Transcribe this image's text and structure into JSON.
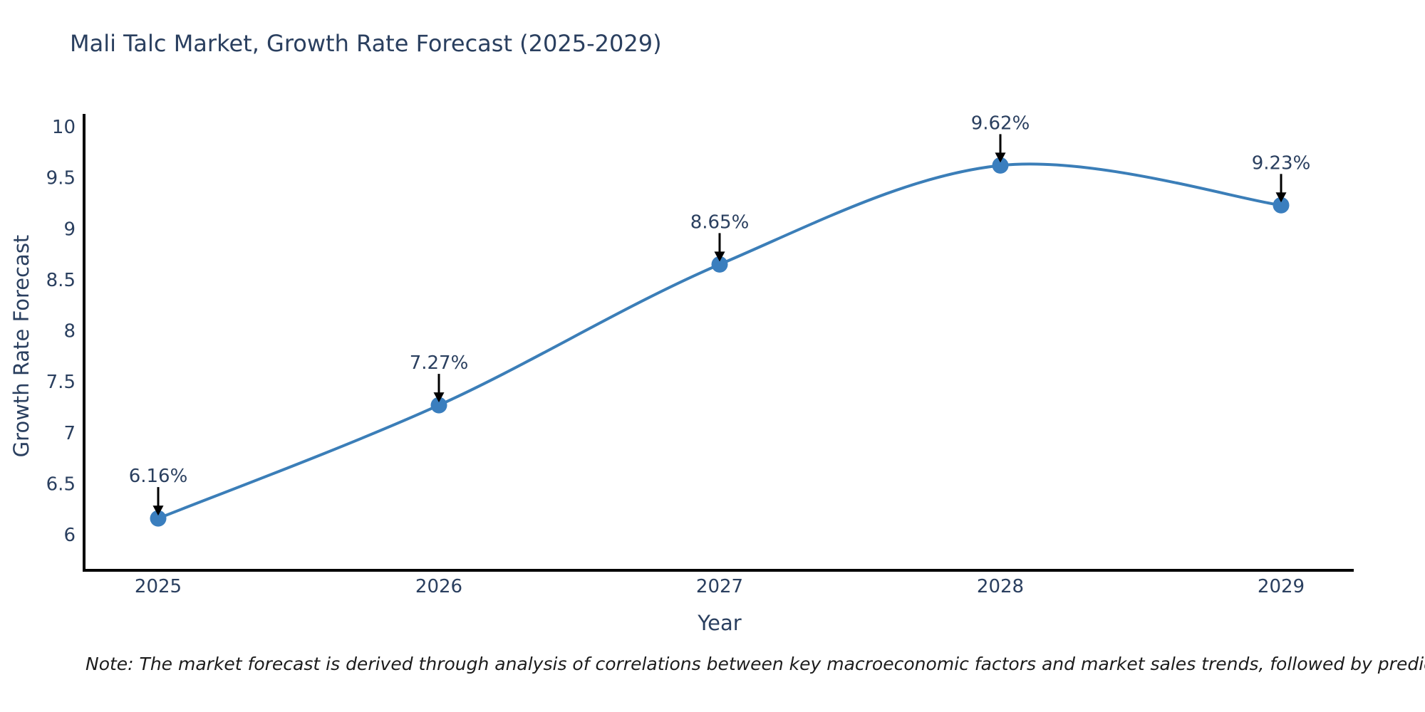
{
  "title": "Mali Talc Market, Growth Rate Forecast (2025-2029)",
  "note": "Note: The market forecast is derived through analysis of correlations between key macroeconomic factors and market sales trends, followed by predictive modeling to project future sales",
  "chart_data": {
    "type": "line",
    "title": "Mali Talc Market, Growth Rate Forecast (2025-2029)",
    "xlabel": "Year",
    "ylabel": "Growth Rate Forecast",
    "categories": [
      "2025",
      "2026",
      "2027",
      "2028",
      "2029"
    ],
    "series": [
      {
        "name": "Growth Rate Forecast",
        "values": [
          6.16,
          7.27,
          8.65,
          9.62,
          9.23
        ],
        "data_labels": [
          "6.16%",
          "7.27%",
          "8.65%",
          "9.62%",
          "9.23%"
        ]
      }
    ],
    "ylim": [
      6,
      10
    ],
    "yticks": [
      6,
      6.5,
      7,
      7.5,
      8,
      8.5,
      9,
      9.5,
      10
    ],
    "ytick_labels": [
      "6",
      "6.5",
      "7",
      "7.5",
      "8",
      "8.5",
      "9",
      "9.5",
      "10"
    ],
    "line_shape": "spline",
    "grid": false,
    "legend": false,
    "annotation_style": "value label above point with black down-arrow",
    "colors": {
      "line": "#3b7eb8",
      "marker": "#3a7ebe",
      "axis": "#000000",
      "text": "#2a3f5f",
      "annotation": "#2a3f5f",
      "arrow": "#000000",
      "note_text": "#1c1c1c"
    }
  }
}
